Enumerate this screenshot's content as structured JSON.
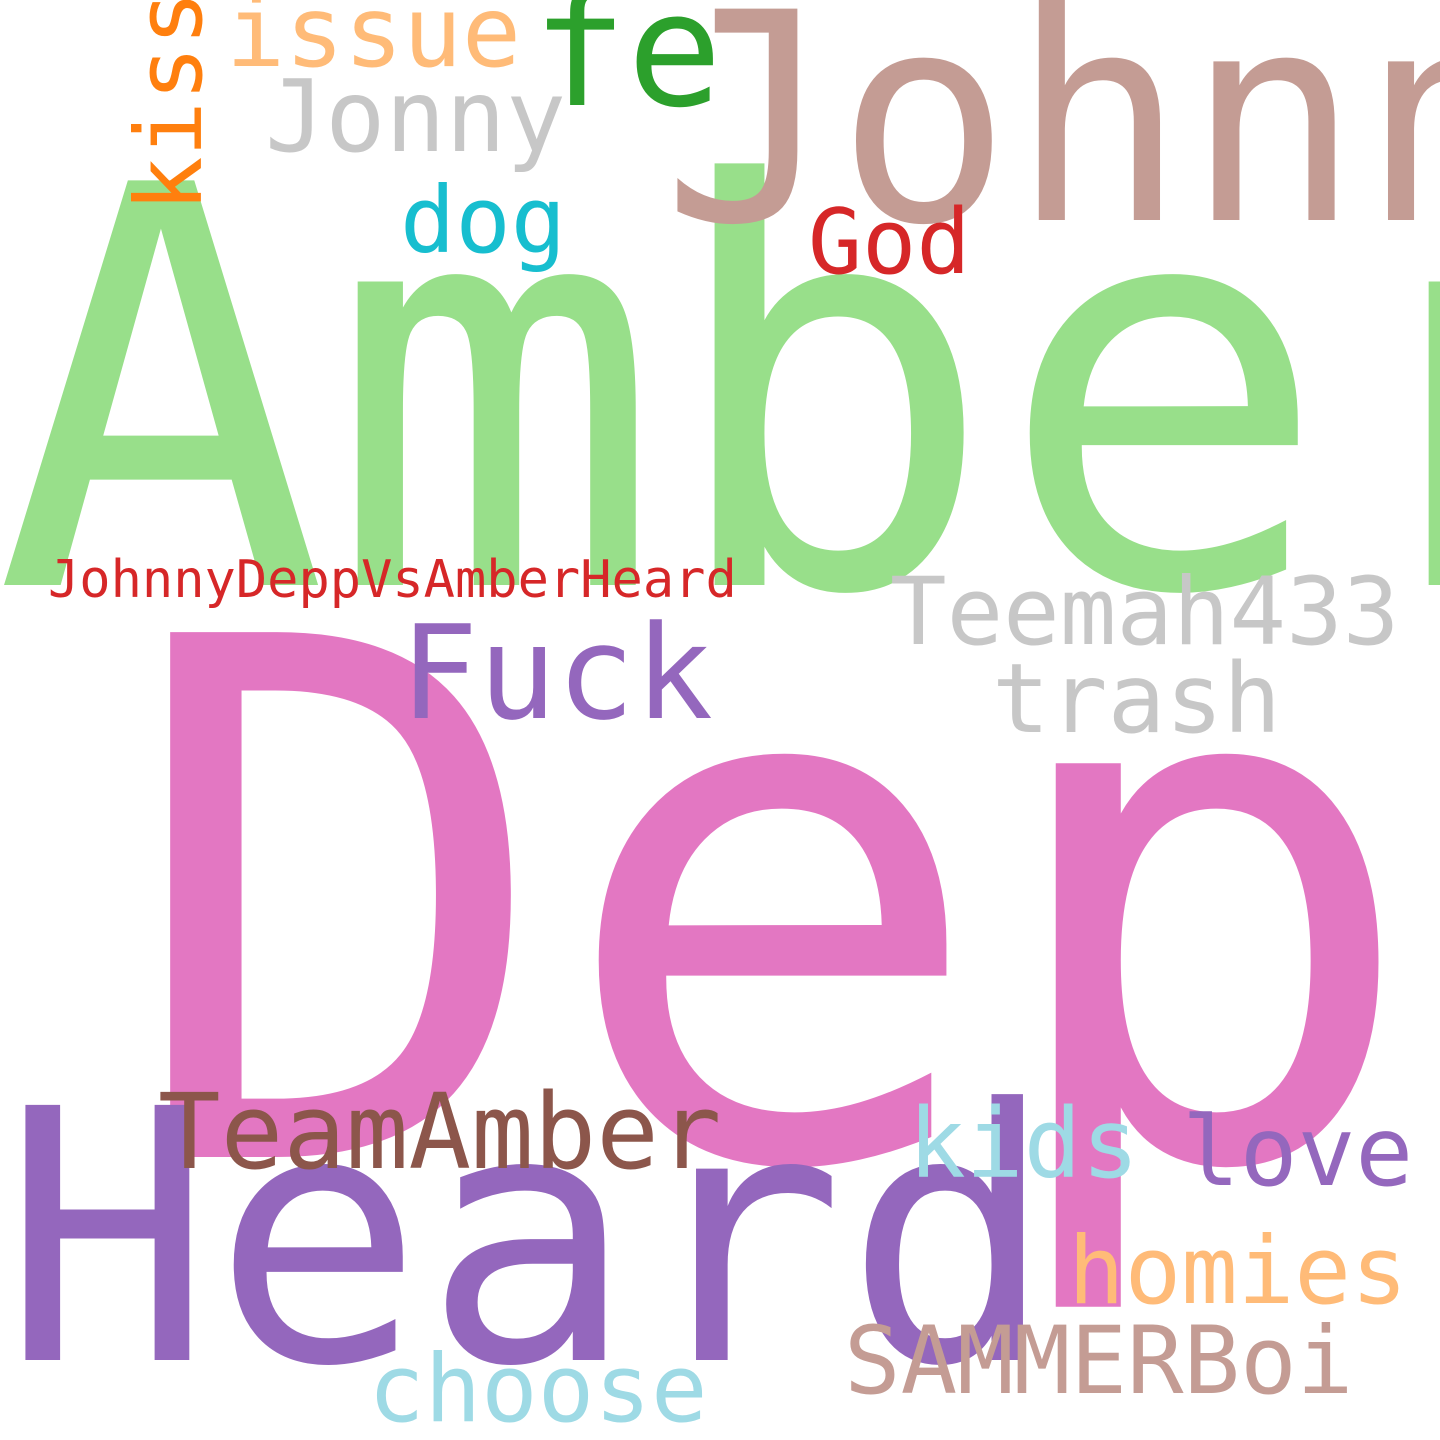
{
  "word_cloud": {
    "background": "#ffffff",
    "words": [
      {
        "text": "Depp",
        "color": "#e377c2",
        "orientation": "horizontal"
      },
      {
        "text": "Amber",
        "color": "#98df8a",
        "orientation": "horizontal"
      },
      {
        "text": "Johnny",
        "color": "#c49c94",
        "orientation": "horizontal"
      },
      {
        "text": "Heard",
        "color": "#9467bd",
        "orientation": "horizontal"
      },
      {
        "text": "fe",
        "color": "#2ca02c",
        "orientation": "horizontal"
      },
      {
        "text": "Fuck",
        "color": "#9467bd",
        "orientation": "horizontal"
      },
      {
        "text": "TeamAmber",
        "color": "#8c564b",
        "orientation": "horizontal"
      },
      {
        "text": "issue",
        "color": "#ffbb78",
        "orientation": "horizontal"
      },
      {
        "text": "Jonny",
        "color": "#c7c7c7",
        "orientation": "horizontal"
      },
      {
        "text": "Teemah433",
        "color": "#c7c7c7",
        "orientation": "horizontal"
      },
      {
        "text": "trash",
        "color": "#c7c7c7",
        "orientation": "horizontal"
      },
      {
        "text": "kids",
        "color": "#9edae5",
        "orientation": "horizontal"
      },
      {
        "text": "love",
        "color": "#9467bd",
        "orientation": "horizontal"
      },
      {
        "text": "homies",
        "color": "#ffbb78",
        "orientation": "horizontal"
      },
      {
        "text": "SAMMERBoi",
        "color": "#c49c94",
        "orientation": "horizontal"
      },
      {
        "text": "choose",
        "color": "#9edae5",
        "orientation": "horizontal"
      },
      {
        "text": "dog",
        "color": "#17becf",
        "orientation": "horizontal"
      },
      {
        "text": "God",
        "color": "#d62728",
        "orientation": "horizontal"
      },
      {
        "text": "JohnnyDeppVsAmberHeard",
        "color": "#d62728",
        "orientation": "horizontal"
      },
      {
        "text": "kiss",
        "color": "#ff7f0e",
        "orientation": "vertical"
      }
    ]
  }
}
